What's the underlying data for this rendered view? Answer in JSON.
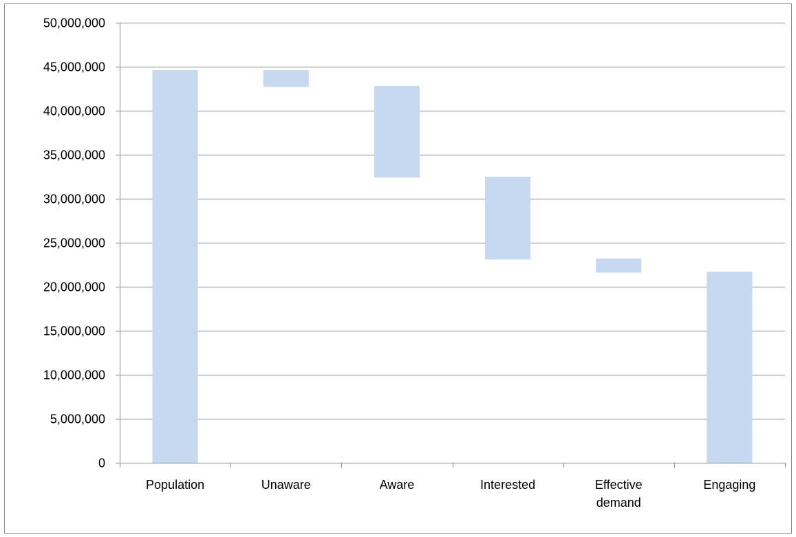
{
  "chart_data": {
    "type": "bar",
    "subtype": "waterfall",
    "title": "",
    "xlabel": "",
    "ylabel": "",
    "ylim": [
      0,
      50000000
    ],
    "yticks": [
      0,
      5000000,
      10000000,
      15000000,
      20000000,
      25000000,
      30000000,
      35000000,
      40000000,
      45000000,
      50000000
    ],
    "ytick_labels": [
      "0",
      "5,000,000",
      "10,000,000",
      "15,000,000",
      "20,000,000",
      "25,000,000",
      "30,000,000",
      "35,000,000",
      "40,000,000",
      "45,000,000",
      "50,000,000"
    ],
    "categories": [
      "Population",
      "Unaware",
      "Aware",
      "Interested",
      "Effective demand",
      "Engaging"
    ],
    "category_label_lines": [
      [
        "Population"
      ],
      [
        "Unaware"
      ],
      [
        "Aware"
      ],
      [
        "Interested"
      ],
      [
        "Effective",
        "demand"
      ],
      [
        "Engaging"
      ]
    ],
    "bars": [
      {
        "category": "Population",
        "bottom": 0,
        "top": 44600000
      },
      {
        "category": "Unaware",
        "bottom": 42700000,
        "top": 44600000
      },
      {
        "category": "Aware",
        "bottom": 32400000,
        "top": 42800000
      },
      {
        "category": "Interested",
        "bottom": 23100000,
        "top": 32500000
      },
      {
        "category": "Effective demand",
        "bottom": 21600000,
        "top": 23200000
      },
      {
        "category": "Engaging",
        "bottom": 0,
        "top": 21700000
      }
    ],
    "bar_color": "#c6d9f1",
    "grid": true,
    "gridline_color": "#878787",
    "legend": "none"
  }
}
